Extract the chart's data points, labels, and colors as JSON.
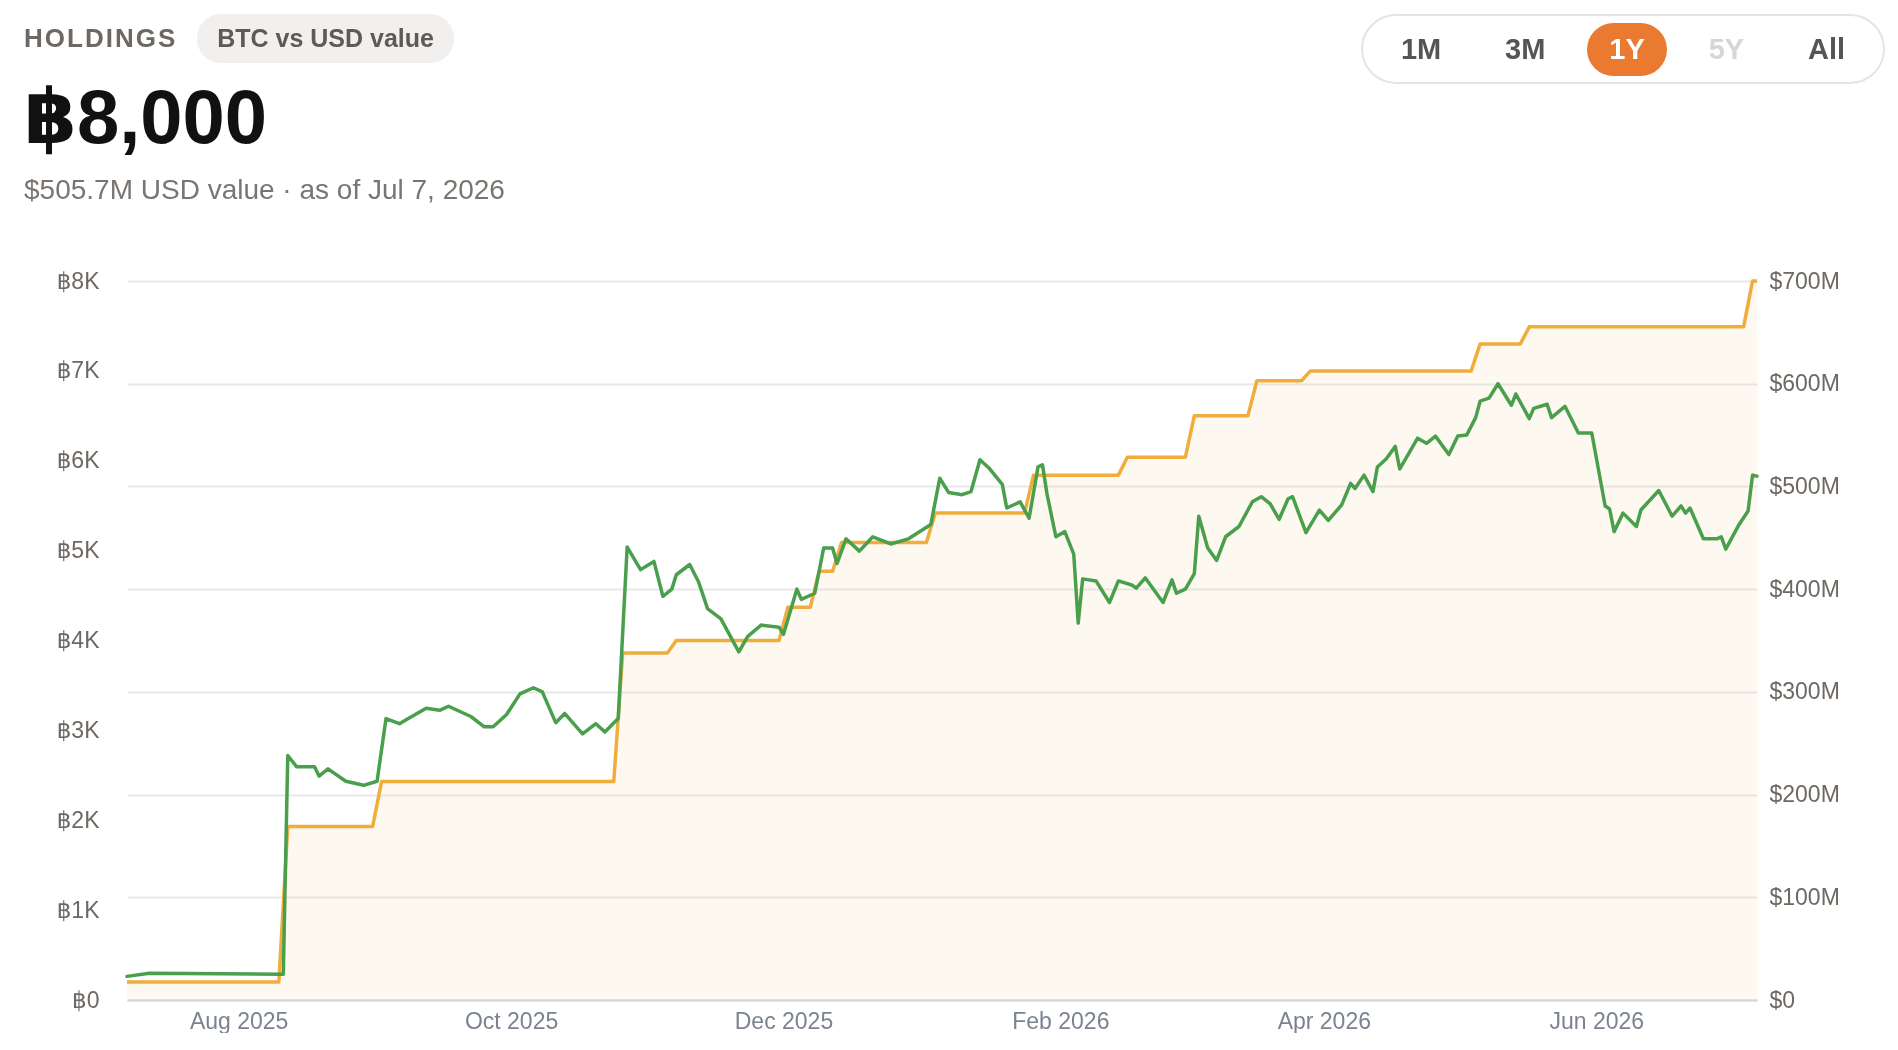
{
  "chart_data": {
    "type": "line",
    "title": "HOLDINGS",
    "subtitle": "BTC vs USD value",
    "annotations": [
      "฿8,000",
      "$505.7M USD value · as of Jul 7, 2026",
      "1M",
      "3M",
      "1Y",
      "5Y",
      "All"
    ],
    "xlim": [
      "2025-07-07",
      "2026-07-07"
    ],
    "xticks": [
      {
        "value": "2025-08-01",
        "label": "Aug 2025"
      },
      {
        "value": "2025-10-01",
        "label": "Oct 2025"
      },
      {
        "value": "2025-12-01",
        "label": "Dec 2025"
      },
      {
        "value": "2026-02-01",
        "label": "Feb 2026"
      },
      {
        "value": "2026-04-01",
        "label": "Apr 2026"
      },
      {
        "value": "2026-06-01",
        "label": "Jun 2026"
      }
    ],
    "ylim": [
      0,
      8000
    ],
    "yticks": [
      {
        "value": 0,
        "label": "฿0"
      },
      {
        "value": 1000,
        "label": "฿1K"
      },
      {
        "value": 2000,
        "label": "฿2K"
      },
      {
        "value": 3000,
        "label": "฿3K"
      },
      {
        "value": 4000,
        "label": "฿4K"
      },
      {
        "value": 5000,
        "label": "฿5K"
      },
      {
        "value": 6000,
        "label": "฿6K"
      },
      {
        "value": 7000,
        "label": "฿7K"
      },
      {
        "value": 8000,
        "label": "฿8K"
      }
    ],
    "y2lim": [
      0,
      700
    ],
    "y2ticks": [
      {
        "value": 0,
        "label": "$0"
      },
      {
        "value": 100,
        "label": "$100M"
      },
      {
        "value": 200,
        "label": "$200M"
      },
      {
        "value": 300,
        "label": "$300M"
      },
      {
        "value": 400,
        "label": "$400M"
      },
      {
        "value": 500,
        "label": "$500M"
      },
      {
        "value": 600,
        "label": "$600M"
      },
      {
        "value": 700,
        "label": "$700M"
      }
    ],
    "grid": "y",
    "series": [
      {
        "type": "area",
        "color": "#f0ad3c",
        "x": [
          "2025-07-07",
          "2025-08-10",
          "2025-08-12",
          "2025-08-31",
          "2025-09-02",
          "2025-10-24",
          "2025-10-26",
          "2025-11-05",
          "2025-11-07",
          "2025-11-30",
          "2025-12-02",
          "2025-12-07",
          "2025-12-09",
          "2025-12-12",
          "2025-12-14",
          "2026-01-02",
          "2026-01-04",
          "2026-01-24",
          "2026-01-26",
          "2026-02-14",
          "2026-02-16",
          "2026-03-01",
          "2026-03-03",
          "2026-03-15",
          "2026-03-17",
          "2026-03-27",
          "2026-03-29",
          "2026-05-04",
          "2026-05-06",
          "2026-05-15",
          "2026-05-17",
          "2026-07-04",
          "2026-07-06",
          "2026-07-07"
        ],
        "values": [
          200,
          200,
          1930,
          1930,
          2430,
          2430,
          3860,
          3860,
          4000,
          4000,
          4370,
          4370,
          4770,
          4770,
          5090,
          5090,
          5420,
          5420,
          5840,
          5840,
          6040,
          6040,
          6500,
          6500,
          6890,
          6890,
          7000,
          7000,
          7300,
          7300,
          7490,
          7490,
          8000,
          8000
        ]
      },
      {
        "axis": "y2",
        "color": "#4a9f4c",
        "x": [
          "2025-07-07",
          "2025-07-12",
          "2025-08-11",
          "2025-08-12",
          "2025-08-14",
          "2025-08-18",
          "2025-08-19",
          "2025-08-21",
          "2025-08-25",
          "2025-08-29",
          "2025-09-01",
          "2025-09-03",
          "2025-09-06",
          "2025-09-08",
          "2025-09-12",
          "2025-09-15",
          "2025-09-17",
          "2025-09-22",
          "2025-09-25",
          "2025-09-27",
          "2025-09-30",
          "2025-10-03",
          "2025-10-06",
          "2025-10-08",
          "2025-10-11",
          "2025-10-13",
          "2025-10-17",
          "2025-10-20",
          "2025-10-22",
          "2025-10-25",
          "2025-10-27",
          "2025-10-30",
          "2025-11-02",
          "2025-11-04",
          "2025-11-06",
          "2025-11-07",
          "2025-11-10",
          "2025-11-12",
          "2025-11-14",
          "2025-11-17",
          "2025-11-21",
          "2025-11-23",
          "2025-11-26",
          "2025-11-30",
          "2025-12-01",
          "2025-12-04",
          "2025-12-05",
          "2025-12-08",
          "2025-12-10",
          "2025-12-12",
          "2025-12-13",
          "2025-12-15",
          "2025-12-18",
          "2025-12-21",
          "2025-12-25",
          "2025-12-29",
          "2026-01-03",
          "2026-01-05",
          "2026-01-07",
          "2026-01-10",
          "2026-01-12",
          "2026-01-14",
          "2026-01-16",
          "2026-01-19",
          "2026-01-20",
          "2026-01-23",
          "2026-01-25",
          "2026-01-27",
          "2026-01-28",
          "2026-01-29",
          "2026-01-31",
          "2026-02-02",
          "2026-02-04",
          "2026-02-05",
          "2026-02-06",
          "2026-02-09",
          "2026-02-12",
          "2026-02-14",
          "2026-02-17",
          "2026-02-18",
          "2026-02-20",
          "2026-02-24",
          "2026-02-26",
          "2026-02-27",
          "2026-03-01",
          "2026-03-03",
          "2026-03-04",
          "2026-03-06",
          "2026-03-08",
          "2026-03-10",
          "2026-03-13",
          "2026-03-16",
          "2026-03-18",
          "2026-03-20",
          "2026-03-22",
          "2026-03-24",
          "2026-03-25",
          "2026-03-28",
          "2026-03-31",
          "2026-04-02",
          "2026-04-05",
          "2026-04-07",
          "2026-04-08",
          "2026-04-10",
          "2026-04-12",
          "2026-04-13",
          "2026-04-15",
          "2026-04-17",
          "2026-04-18",
          "2026-04-20",
          "2026-04-22",
          "2026-04-24",
          "2026-04-26",
          "2026-04-29",
          "2026-05-01",
          "2026-05-03",
          "2026-05-05",
          "2026-05-06",
          "2026-05-08",
          "2026-05-10",
          "2026-05-13",
          "2026-05-14",
          "2026-05-17",
          "2026-05-18",
          "2026-05-21",
          "2026-05-22",
          "2026-05-25",
          "2026-05-28",
          "2026-05-31",
          "2026-06-03",
          "2026-06-04",
          "2026-06-05",
          "2026-06-07",
          "2026-06-10",
          "2026-06-11",
          "2026-06-15",
          "2026-06-18",
          "2026-06-20",
          "2026-06-21",
          "2026-06-22",
          "2026-06-25",
          "2026-06-28",
          "2026-06-29",
          "2026-06-30",
          "2026-07-03",
          "2026-07-05",
          "2026-07-06",
          "2026-07-07"
        ],
        "values": [
          23,
          26,
          25,
          238,
          227,
          227,
          218,
          225,
          213,
          209,
          213,
          274,
          269,
          274,
          284,
          282,
          286,
          276,
          266,
          266,
          278,
          298,
          304,
          300,
          270,
          279,
          259,
          269,
          261,
          274,
          441,
          419,
          427,
          393,
          400,
          414,
          424,
          407,
          381,
          371,
          339,
          354,
          365,
          363,
          356,
          400,
          390,
          396,
          440,
          440,
          425,
          449,
          437,
          451,
          444,
          449,
          463,
          508,
          494,
          492,
          495,
          526,
          518,
          502,
          479,
          485,
          469,
          519,
          521,
          493,
          451,
          456,
          434,
          367,
          410,
          408,
          387,
          408,
          404,
          401,
          411,
          387,
          409,
          396,
          400,
          415,
          471,
          440,
          428,
          451,
          461,
          485,
          490,
          483,
          468,
          488,
          490,
          455,
          477,
          467,
          482,
          503,
          498,
          511,
          495,
          519,
          527,
          539,
          517,
          532,
          547,
          542,
          549,
          531,
          549,
          550,
          567,
          583,
          586,
          600,
          579,
          590,
          566,
          576,
          580,
          567,
          578,
          552,
          552,
          481,
          478,
          456,
          474,
          461,
          477,
          496,
          471,
          481,
          474,
          479,
          449,
          449,
          451,
          439,
          463,
          476,
          511,
          510
        ]
      }
    ]
  }
}
